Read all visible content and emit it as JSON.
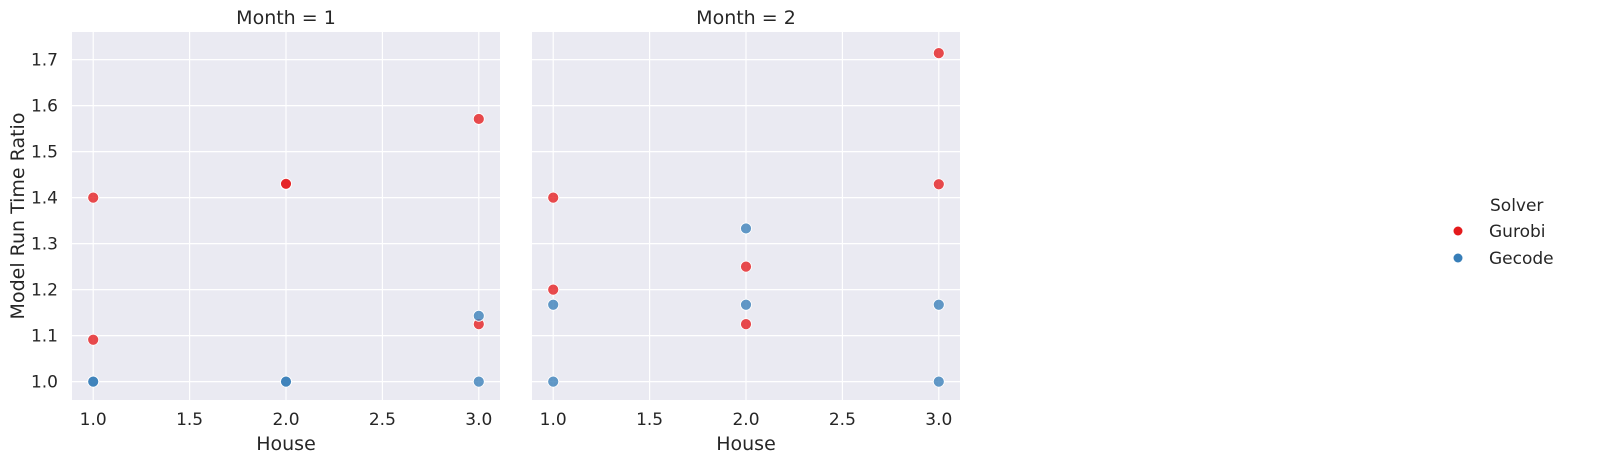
{
  "chart_data": {
    "type": "scatter",
    "ylabel": "Model Run Time Ratio",
    "ylim": [
      0.96,
      1.76
    ],
    "yticks": [
      "1.0",
      "1.1",
      "1.2",
      "1.3",
      "1.4",
      "1.5",
      "1.6",
      "1.7"
    ],
    "xlim": [
      0.89,
      3.11
    ],
    "xticks": [
      "1.0",
      "1.5",
      "2.0",
      "2.5",
      "3.0"
    ],
    "grid": true,
    "legend": {
      "title": "Solver",
      "placement": "right",
      "entries": [
        {
          "label": "Gurobi",
          "color": "#e41a1c"
        },
        {
          "label": "Gecode",
          "color": "#377eb8"
        }
      ]
    },
    "panels": [
      {
        "title": "Month = 1",
        "xlabel": "House",
        "series": [
          {
            "name": "Gurobi",
            "points": [
              [
                1,
                1.4
              ],
              [
                1,
                1.091
              ],
              [
                2,
                1.429
              ],
              [
                2,
                1.43
              ],
              [
                3,
                1.571
              ],
              [
                3,
                1.125
              ]
            ]
          },
          {
            "name": "Gecode",
            "points": [
              [
                1,
                1.0
              ],
              [
                1,
                1.0
              ],
              [
                2,
                1.0
              ],
              [
                2,
                1.0
              ],
              [
                3,
                1.143
              ],
              [
                3,
                1.0
              ]
            ]
          }
        ]
      },
      {
        "title": "Month = 2",
        "xlabel": "House",
        "series": [
          {
            "name": "Gurobi",
            "points": [
              [
                1,
                1.4
              ],
              [
                1,
                1.2
              ],
              [
                2,
                1.25
              ],
              [
                2,
                1.125
              ],
              [
                3,
                1.714
              ],
              [
                3,
                1.429
              ]
            ]
          },
          {
            "name": "Gecode",
            "points": [
              [
                1,
                1.167
              ],
              [
                1,
                1.0
              ],
              [
                2,
                1.333
              ],
              [
                2,
                1.167
              ],
              [
                3,
                1.167
              ],
              [
                3,
                1.0
              ]
            ]
          }
        ]
      }
    ]
  }
}
